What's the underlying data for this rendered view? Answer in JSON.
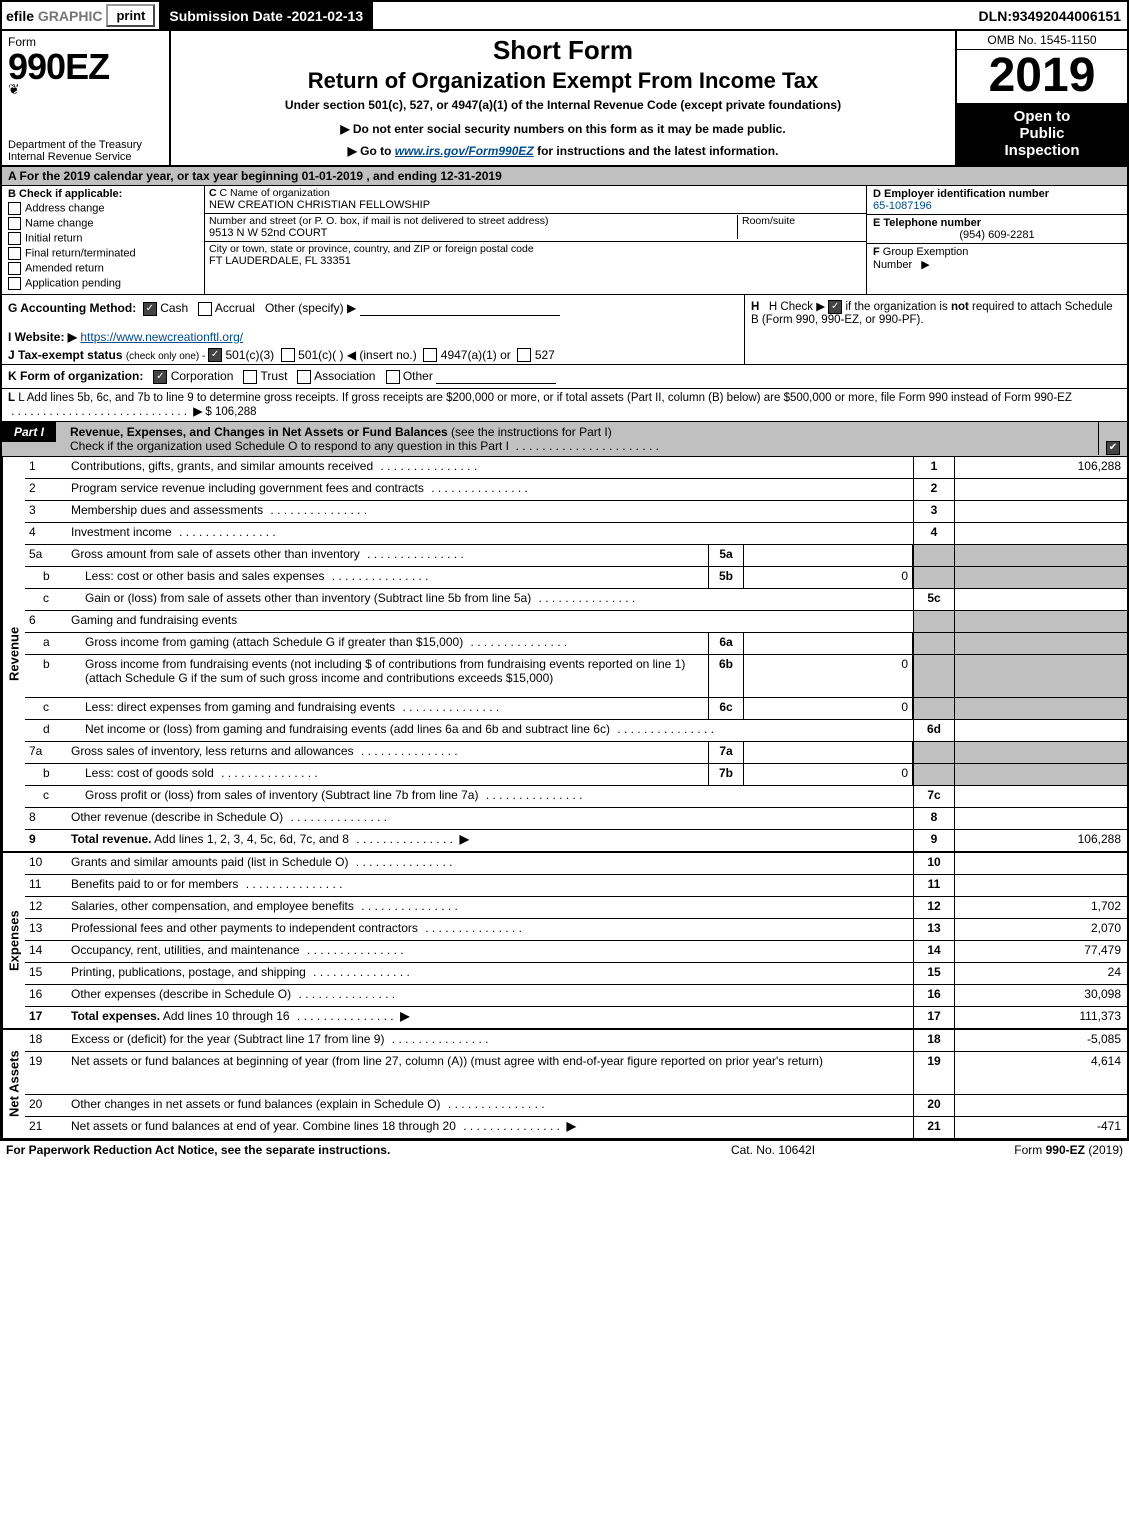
{
  "topbar": {
    "efile": "efile",
    "graphic": "GRAPHIC",
    "print": "print",
    "submission_label": "Submission Date - ",
    "submission_date": "2021-02-13",
    "dln_label": "DLN: ",
    "dln": "93492044006151"
  },
  "title": {
    "form_word": "Form",
    "form_num": "990EZ",
    "seal_glyph": "❦",
    "dept1": "Department of the Treasury",
    "dept2": "Internal Revenue Service",
    "short_form": "Short Form",
    "return_title": "Return of Organization Exempt From Income Tax",
    "under_section": "Under section 501(c), 527, or 4947(a)(1) of the Internal Revenue Code (except private foundations)",
    "notice": "▶ Do not enter social security numbers on this form as it may be made public.",
    "goto_pre": "▶ Go to ",
    "goto_link": "www.irs.gov/Form990EZ",
    "goto_post": " for instructions and the latest information.",
    "omb": "OMB No. 1545-1150",
    "year": "2019",
    "open1": "Open to",
    "open2": "Public",
    "open3": "Inspection"
  },
  "a_row": "A For the 2019 calendar year, or tax year beginning 01-01-2019 , and ending 12-31-2019",
  "b": {
    "head": "B Check if applicable:",
    "opts": [
      "Address change",
      "Name change",
      "Initial return",
      "Final return/terminated",
      "Amended return",
      "Application pending"
    ]
  },
  "c": {
    "c_lbl": "C Name of organization",
    "c_val": "NEW CREATION CHRISTIAN FELLOWSHIP",
    "addr_lbl": "Number and street (or P. O. box, if mail is not delivered to street address)",
    "addr_val": "9513 N W 52nd COURT",
    "room_lbl": "Room/suite",
    "city_lbl": "City or town, state or province, country, and ZIP or foreign postal code",
    "city_val": "FT LAUDERDALE, FL  33351"
  },
  "d": {
    "head": "D Employer identification number",
    "val": "65-1087196"
  },
  "e": {
    "head": "E Telephone number",
    "val": "(954) 609-2281"
  },
  "f": {
    "lbl": "F Group Exemption Number   ▶"
  },
  "g": {
    "lbl": "G Accounting Method:",
    "cash": "Cash",
    "accrual": "Accrual",
    "other": "Other (specify) ▶"
  },
  "h": {
    "pre": "H  Check ▶ ",
    "post": " if the organization is not required to attach Schedule B (Form 990, 990-EZ, or 990-PF)."
  },
  "i": {
    "lbl": "I Website: ▶",
    "url": "https://www.newcreationftl.org/"
  },
  "j": {
    "lbl": "J Tax-exempt status",
    "sub": "(check only one) - ",
    "o1": "501(c)(3)",
    "o2": "501(c)(   ) ◀ (insert no.)",
    "o3": "4947(a)(1) or",
    "o4": "527"
  },
  "k": {
    "lbl": "K Form of organization:",
    "o1": "Corporation",
    "o2": "Trust",
    "o3": "Association",
    "o4": "Other"
  },
  "l": {
    "text": "L Add lines 5b, 6c, and 7b to line 9 to determine gross receipts. If gross receipts are $200,000 or more, or if total assets (Part II, column (B) below) are $500,000 or more, file Form 990 instead of Form 990-EZ",
    "arrow": "▶",
    "amt": "$ 106,288"
  },
  "part1": {
    "tab": "Part I",
    "title": "Revenue, Expenses, and Changes in Net Assets or Fund Balances",
    "title_sub": "(see the instructions for Part I)",
    "check_text": "Check if the organization used Schedule O to respond to any question in this Part I",
    "check_glyph": "✔"
  },
  "vtabs": {
    "rev": "Revenue",
    "exp": "Expenses",
    "na": "Net Assets"
  },
  "revenue_lines": [
    {
      "n": "1",
      "d": "Contributions, gifts, grants, and similar amounts received",
      "ref": "1",
      "amt": "106,288"
    },
    {
      "n": "2",
      "d": "Program service revenue including government fees and contracts",
      "ref": "2",
      "amt": ""
    },
    {
      "n": "3",
      "d": "Membership dues and assessments",
      "ref": "3",
      "amt": ""
    },
    {
      "n": "4",
      "d": "Investment income",
      "ref": "4",
      "amt": ""
    },
    {
      "n": "5a",
      "d": "Gross amount from sale of assets other than inventory",
      "il": "5a",
      "iv": ""
    },
    {
      "n": "b",
      "d": "Less: cost or other basis and sales expenses",
      "il": "5b",
      "iv": "0"
    },
    {
      "n": "c",
      "d": "Gain or (loss) from sale of assets other than inventory (Subtract line 5b from line 5a)",
      "ref": "5c",
      "amt": ""
    },
    {
      "n": "6",
      "d": "Gaming and fundraising events",
      "header": true
    },
    {
      "n": "a",
      "d": "Gross income from gaming (attach Schedule G if greater than $15,000)",
      "il": "6a",
      "iv": ""
    },
    {
      "n": "b",
      "d": "Gross income from fundraising events (not including $                           of contributions from fundraising events reported on line 1) (attach Schedule G if the sum of such gross income and contributions exceeds $15,000)",
      "il": "6b",
      "iv": "0",
      "tall": true
    },
    {
      "n": "c",
      "d": "Less: direct expenses from gaming and fundraising events",
      "il": "6c",
      "iv": "0"
    },
    {
      "n": "d",
      "d": "Net income or (loss) from gaming and fundraising events (add lines 6a and 6b and subtract line 6c)",
      "ref": "6d",
      "amt": ""
    },
    {
      "n": "7a",
      "d": "Gross sales of inventory, less returns and allowances",
      "il": "7a",
      "iv": ""
    },
    {
      "n": "b",
      "d": "Less: cost of goods sold",
      "il": "7b",
      "iv": "0"
    },
    {
      "n": "c",
      "d": "Gross profit or (loss) from sales of inventory (Subtract line 7b from line 7a)",
      "ref": "7c",
      "amt": ""
    },
    {
      "n": "8",
      "d": "Other revenue (describe in Schedule O)",
      "ref": "8",
      "amt": ""
    },
    {
      "n": "9",
      "d": "Total revenue. Add lines 1, 2, 3, 4, 5c, 6d, 7c, and 8",
      "ref": "9",
      "amt": "106,288",
      "bold": true,
      "arrow": true
    }
  ],
  "expense_lines": [
    {
      "n": "10",
      "d": "Grants and similar amounts paid (list in Schedule O)",
      "ref": "10",
      "amt": ""
    },
    {
      "n": "11",
      "d": "Benefits paid to or for members",
      "ref": "11",
      "amt": ""
    },
    {
      "n": "12",
      "d": "Salaries, other compensation, and employee benefits",
      "ref": "12",
      "amt": "1,702"
    },
    {
      "n": "13",
      "d": "Professional fees and other payments to independent contractors",
      "ref": "13",
      "amt": "2,070"
    },
    {
      "n": "14",
      "d": "Occupancy, rent, utilities, and maintenance",
      "ref": "14",
      "amt": "77,479"
    },
    {
      "n": "15",
      "d": "Printing, publications, postage, and shipping",
      "ref": "15",
      "amt": "24"
    },
    {
      "n": "16",
      "d": "Other expenses (describe in Schedule O)",
      "ref": "16",
      "amt": "30,098"
    },
    {
      "n": "17",
      "d": "Total expenses. Add lines 10 through 16",
      "ref": "17",
      "amt": "111,373",
      "bold": true,
      "arrow": true
    }
  ],
  "netasset_lines": [
    {
      "n": "18",
      "d": "Excess or (deficit) for the year (Subtract line 17 from line 9)",
      "ref": "18",
      "amt": "-5,085"
    },
    {
      "n": "19",
      "d": "Net assets or fund balances at beginning of year (from line 27, column (A)) (must agree with end-of-year figure reported on prior year's return)",
      "ref": "19",
      "amt": "4,614",
      "tall": true
    },
    {
      "n": "20",
      "d": "Other changes in net assets or fund balances (explain in Schedule O)",
      "ref": "20",
      "amt": ""
    },
    {
      "n": "21",
      "d": "Net assets or fund balances at end of year. Combine lines 18 through 20",
      "ref": "21",
      "amt": "-471",
      "arrow": true
    }
  ],
  "footer": {
    "left": "For Paperwork Reduction Act Notice, see the separate instructions.",
    "mid": "Cat. No. 10642I",
    "right_pre": "Form ",
    "right_bold": "990-EZ",
    "right_post": " (2019)"
  }
}
